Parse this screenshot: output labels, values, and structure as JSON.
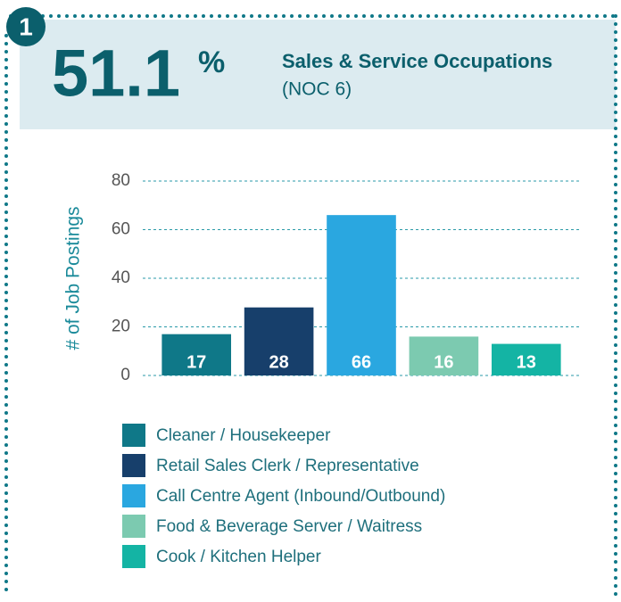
{
  "badge": "1",
  "headline_value": "51.1",
  "headline_unit": "%",
  "title": "Sales & Service Occupations",
  "subtitle": "(NOC 6)",
  "chart_data": {
    "type": "bar",
    "ylabel": "# of Job Postings",
    "categories": [
      "Cleaner / Housekeeper",
      "Retail Sales Clerk / Representative",
      "Call Centre Agent (Inbound/Outbound)",
      "Food & Beverage Server / Waitress",
      "Cook / Kitchen Helper"
    ],
    "values": [
      17,
      28,
      66,
      16,
      13
    ],
    "colors": [
      "#0f7888",
      "#173f6b",
      "#2aa7e0",
      "#7ccab0",
      "#14b4a4"
    ],
    "ylim": [
      0,
      80
    ],
    "yticks": [
      0,
      20,
      40,
      60,
      80
    ],
    "grid": true
  }
}
